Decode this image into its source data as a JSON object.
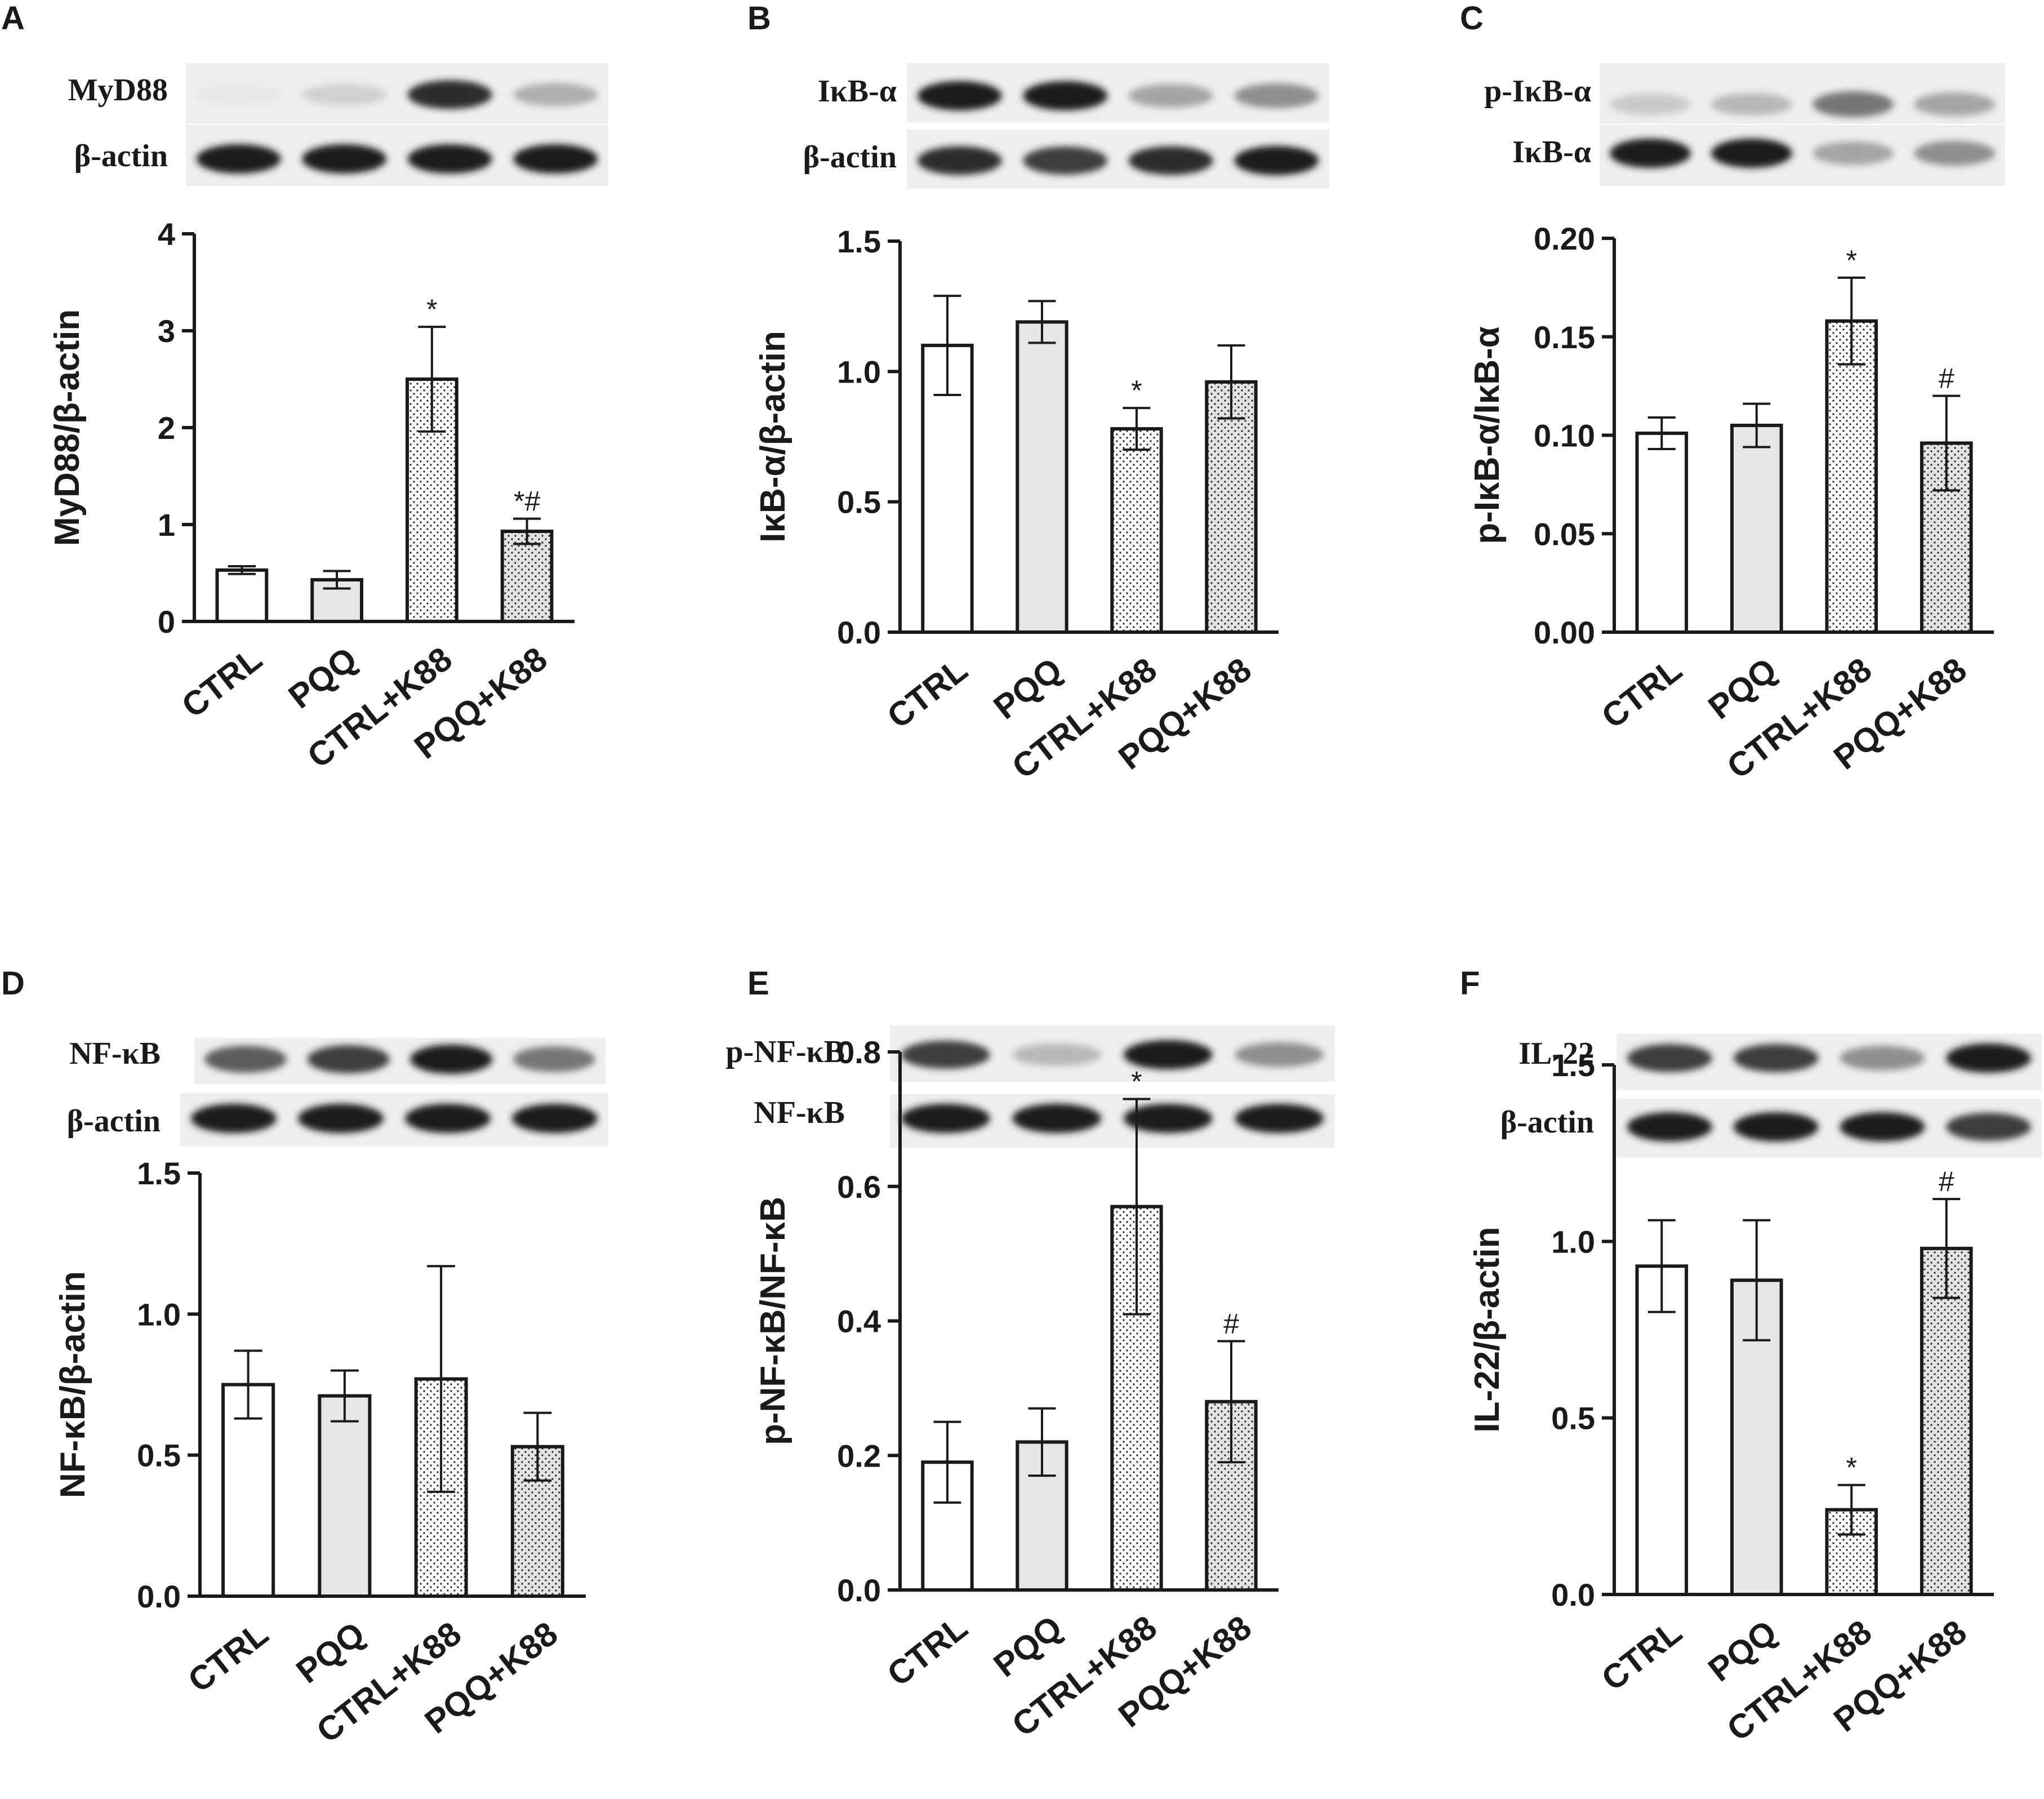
{
  "chart_data": [
    {
      "type": "bar",
      "panel_label": "A",
      "categories": [
        "CTRL",
        "PQQ",
        "CTRL+K88",
        "PQQ+K88"
      ],
      "values": [
        0.53,
        0.43,
        2.5,
        0.93
      ],
      "errors": [
        0.04,
        0.09,
        0.54,
        0.13
      ],
      "annotations": [
        "",
        "",
        "*",
        "*#"
      ],
      "ylabel": "MyD88/β-actin",
      "ylim": [
        0,
        4
      ],
      "yticks": [
        "0",
        "1",
        "2",
        "3",
        "4"
      ],
      "blot_labels": [
        "MyD88",
        "β-actin"
      ]
    },
    {
      "type": "bar",
      "panel_label": "B",
      "categories": [
        "CTRL",
        "PQQ",
        "CTRL+K88",
        "PQQ+K88"
      ],
      "values": [
        1.1,
        1.19,
        0.78,
        0.96
      ],
      "errors": [
        0.19,
        0.08,
        0.08,
        0.14
      ],
      "annotations": [
        "",
        "",
        "*",
        ""
      ],
      "ylabel": "IκB-α/β-actin",
      "ylim": [
        0,
        1.5
      ],
      "yticks": [
        "0.0",
        "0.5",
        "1.0",
        "1.5"
      ],
      "blot_labels": [
        "IκB-α",
        "β-actin"
      ]
    },
    {
      "type": "bar",
      "panel_label": "C",
      "categories": [
        "CTRL",
        "PQQ",
        "CTRL+K88",
        "PQQ+K88"
      ],
      "values": [
        0.101,
        0.105,
        0.158,
        0.096
      ],
      "errors": [
        0.008,
        0.011,
        0.022,
        0.024
      ],
      "annotations": [
        "",
        "",
        "*",
        "#"
      ],
      "ylabel": "p-IκB-α/IκB-α",
      "ylim": [
        0,
        0.2
      ],
      "yticks": [
        "0.00",
        "0.05",
        "0.10",
        "0.15",
        "0.20"
      ],
      "blot_labels": [
        "p-IκB-α",
        "IκB-α"
      ]
    },
    {
      "type": "bar",
      "panel_label": "D",
      "categories": [
        "CTRL",
        "PQQ",
        "CTRL+K88",
        "PQQ+K88"
      ],
      "values": [
        0.75,
        0.71,
        0.77,
        0.53
      ],
      "errors": [
        0.12,
        0.09,
        0.4,
        0.12
      ],
      "annotations": [
        "",
        "",
        "",
        ""
      ],
      "ylabel": "NF-κB/β-actin",
      "ylim": [
        0,
        1.5
      ],
      "yticks": [
        "0.0",
        "0.5",
        "1.0",
        "1.5"
      ],
      "blot_labels": [
        "NF-κB",
        "β-actin"
      ]
    },
    {
      "type": "bar",
      "panel_label": "E",
      "categories": [
        "CTRL",
        "PQQ",
        "CTRL+K88",
        "PQQ+K88"
      ],
      "values": [
        0.19,
        0.22,
        0.57,
        0.28
      ],
      "errors": [
        0.06,
        0.05,
        0.16,
        0.09
      ],
      "annotations": [
        "",
        "",
        "*",
        "#"
      ],
      "ylabel": "p-NF-κB/NF-κB",
      "ylim": [
        0,
        0.8
      ],
      "yticks": [
        "0.0",
        "0.2",
        "0.4",
        "0.6",
        "0.8"
      ],
      "blot_labels": [
        "p-NF-κB",
        "NF-κB"
      ]
    },
    {
      "type": "bar",
      "panel_label": "F",
      "categories": [
        "CTRL",
        "PQQ",
        "CTRL+K88",
        "PQQ+K88"
      ],
      "values": [
        0.93,
        0.89,
        0.24,
        0.98
      ],
      "errors": [
        0.13,
        0.17,
        0.07,
        0.14
      ],
      "annotations": [
        "",
        "",
        "*",
        "#"
      ],
      "ylabel": "IL-22/β-actin",
      "ylim": [
        0,
        1.5
      ],
      "yticks": [
        "0.0",
        "0.5",
        "1.0",
        "1.5"
      ],
      "blot_labels": [
        "IL-22",
        "β-actin"
      ]
    }
  ],
  "style": {
    "bar_fills": [
      "white",
      "lightgray",
      "dots-white",
      "dots-gray"
    ],
    "gray_fill": "#e6e6e6",
    "ink": "#1a1a1a"
  }
}
